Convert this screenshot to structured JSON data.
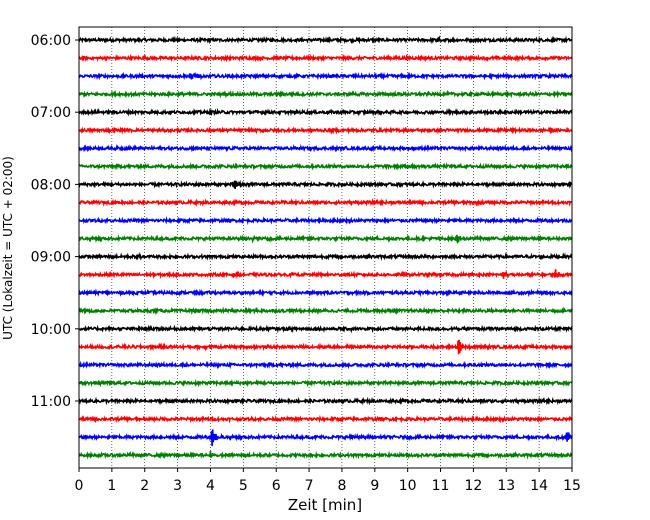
{
  "chart_data": {
    "type": "line",
    "title": "",
    "xlabel": "Zeit  [min]",
    "ylabel": "UTC (Lokalzeit = UTC + 02:00)",
    "xlim": [
      0,
      15
    ],
    "x_ticks": [
      0,
      1,
      2,
      3,
      4,
      5,
      6,
      7,
      8,
      9,
      10,
      11,
      12,
      13,
      14,
      15
    ],
    "y_tick_labels": [
      "06:00",
      "07:00",
      "08:00",
      "09:00",
      "10:00",
      "11:00"
    ],
    "grid": "vertical dotted lines at each minute",
    "legend": "none",
    "trace_interval_min": 15,
    "trace_color_cycle": [
      "#000000",
      "#ff0000",
      "#0000ff",
      "#008000"
    ],
    "traces": [
      {
        "start": "06:00",
        "color": "#000000",
        "events": [
          {
            "t": 10.9,
            "amp": 0.25
          }
        ]
      },
      {
        "start": "06:15",
        "color": "#ff0000",
        "events": []
      },
      {
        "start": "06:30",
        "color": "#0000ff",
        "events": [
          {
            "t": 3.4,
            "amp": 0.6
          },
          {
            "t": 3.6,
            "amp": 0.4
          }
        ]
      },
      {
        "start": "06:45",
        "color": "#008000",
        "events": []
      },
      {
        "start": "07:00",
        "color": "#000000",
        "events": []
      },
      {
        "start": "07:15",
        "color": "#ff0000",
        "events": []
      },
      {
        "start": "07:30",
        "color": "#0000ff",
        "events": []
      },
      {
        "start": "07:45",
        "color": "#008000",
        "events": [
          {
            "t": 9.9,
            "amp": 0.35
          }
        ]
      },
      {
        "start": "08:00",
        "color": "#000000",
        "events": [
          {
            "t": 4.75,
            "amp": 1.1
          }
        ]
      },
      {
        "start": "08:15",
        "color": "#ff0000",
        "events": []
      },
      {
        "start": "08:30",
        "color": "#0000ff",
        "events": []
      },
      {
        "start": "08:45",
        "color": "#008000",
        "events": [
          {
            "t": 11.5,
            "amp": 1.0
          },
          {
            "t": 5.3,
            "amp": 0.3
          }
        ]
      },
      {
        "start": "09:00",
        "color": "#000000",
        "events": [
          {
            "t": 1.8,
            "amp": 0.25
          }
        ]
      },
      {
        "start": "09:15",
        "color": "#ff0000",
        "events": [
          {
            "t": 12.9,
            "amp": 0.9
          },
          {
            "t": 14.5,
            "amp": 0.9
          }
        ]
      },
      {
        "start": "09:30",
        "color": "#0000ff",
        "events": []
      },
      {
        "start": "09:45",
        "color": "#008000",
        "events": [
          {
            "t": 8.9,
            "amp": 0.4
          },
          {
            "t": 15.0,
            "amp": 0.4
          }
        ]
      },
      {
        "start": "10:00",
        "color": "#000000",
        "events": [
          {
            "t": 8.3,
            "amp": 0.3
          }
        ]
      },
      {
        "start": "10:15",
        "color": "#ff0000",
        "events": [
          {
            "t": 11.55,
            "amp": 1.9
          },
          {
            "t": 3.8,
            "amp": 0.3
          }
        ]
      },
      {
        "start": "10:30",
        "color": "#0000ff",
        "events": []
      },
      {
        "start": "10:45",
        "color": "#008000",
        "events": [
          {
            "t": 0.6,
            "amp": 0.3
          }
        ]
      },
      {
        "start": "11:00",
        "color": "#000000",
        "events": []
      },
      {
        "start": "11:15",
        "color": "#ff0000",
        "events": [
          {
            "t": 1.9,
            "amp": 0.3
          }
        ]
      },
      {
        "start": "11:30",
        "color": "#0000ff",
        "events": [
          {
            "t": 4.05,
            "amp": 2.4
          },
          {
            "t": 14.85,
            "amp": 1.5
          },
          {
            "t": 8.3,
            "amp": 0.35
          }
        ]
      },
      {
        "start": "11:45",
        "color": "#008000",
        "events": [
          {
            "t": 4.0,
            "amp": 0.8
          }
        ]
      }
    ]
  }
}
